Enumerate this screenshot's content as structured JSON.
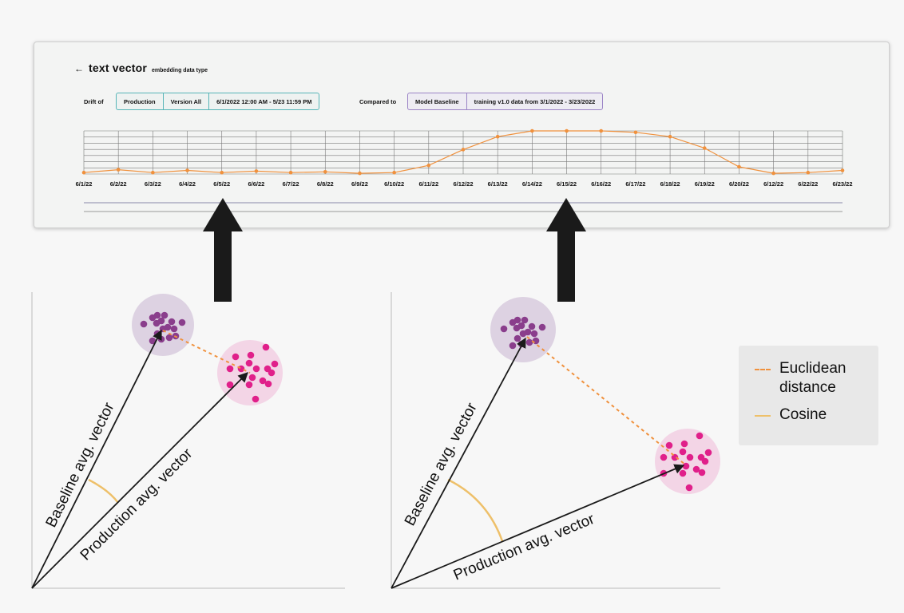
{
  "panel": {
    "back_icon": "arrow-left-icon",
    "title": "text vector",
    "subtitle": "embedding data type",
    "drift_of_label": "Drift of",
    "production": {
      "environment": "Production",
      "version": "Version All",
      "range": "6/1/2022 12:00 AM - 5/23 11:59 PM"
    },
    "compared_to_label": "Compared to",
    "baseline": {
      "name": "Model Baseline",
      "description": "training v1.0 data from 3/1/2022 - 3/23/2022"
    }
  },
  "chart_data": {
    "type": "line",
    "x": [
      "6/1/22",
      "6/2/22",
      "6/3/22",
      "6/4/22",
      "6/5/22",
      "6/6/22",
      "6/7/22",
      "6/8/22",
      "6/9/22",
      "6/10/22",
      "6/11/22",
      "6/12/22",
      "6/13/22",
      "6/14/22",
      "6/15/22",
      "6/16/22",
      "6/17/22",
      "6/18/22",
      "6/19/22",
      "6/20/22",
      "6/12/22",
      "6/22/22",
      "6/23/22"
    ],
    "series": [
      {
        "values": [
          0.2,
          0.6,
          0.2,
          0.5,
          0.2,
          0.4,
          0.2,
          0.3,
          0.1,
          0.2,
          1.2,
          3.4,
          5.2,
          6.0,
          6.0,
          6.0,
          5.8,
          5.2,
          3.6,
          1.0,
          0.1,
          0.2,
          0.5
        ],
        "color": "#f0913d"
      }
    ],
    "ylim": [
      0,
      6
    ],
    "grid": true,
    "line_color": "#f0913d"
  },
  "diagram": {
    "left": {
      "baseline_label": "Baseline avg. vector",
      "production_label": "Production avg. vector"
    },
    "right": {
      "baseline_label": "Baseline avg. vector",
      "production_label": "Production avg. vector"
    },
    "colors": {
      "baseline_points": "#8a3e8c",
      "production_points": "#e0208a",
      "euclidean": "#f0913d",
      "cosine": "#eec06a",
      "arrow": "#1a1a1a"
    },
    "legend": {
      "euclidean": "Euclidean distance",
      "cosine": "Cosine"
    }
  }
}
